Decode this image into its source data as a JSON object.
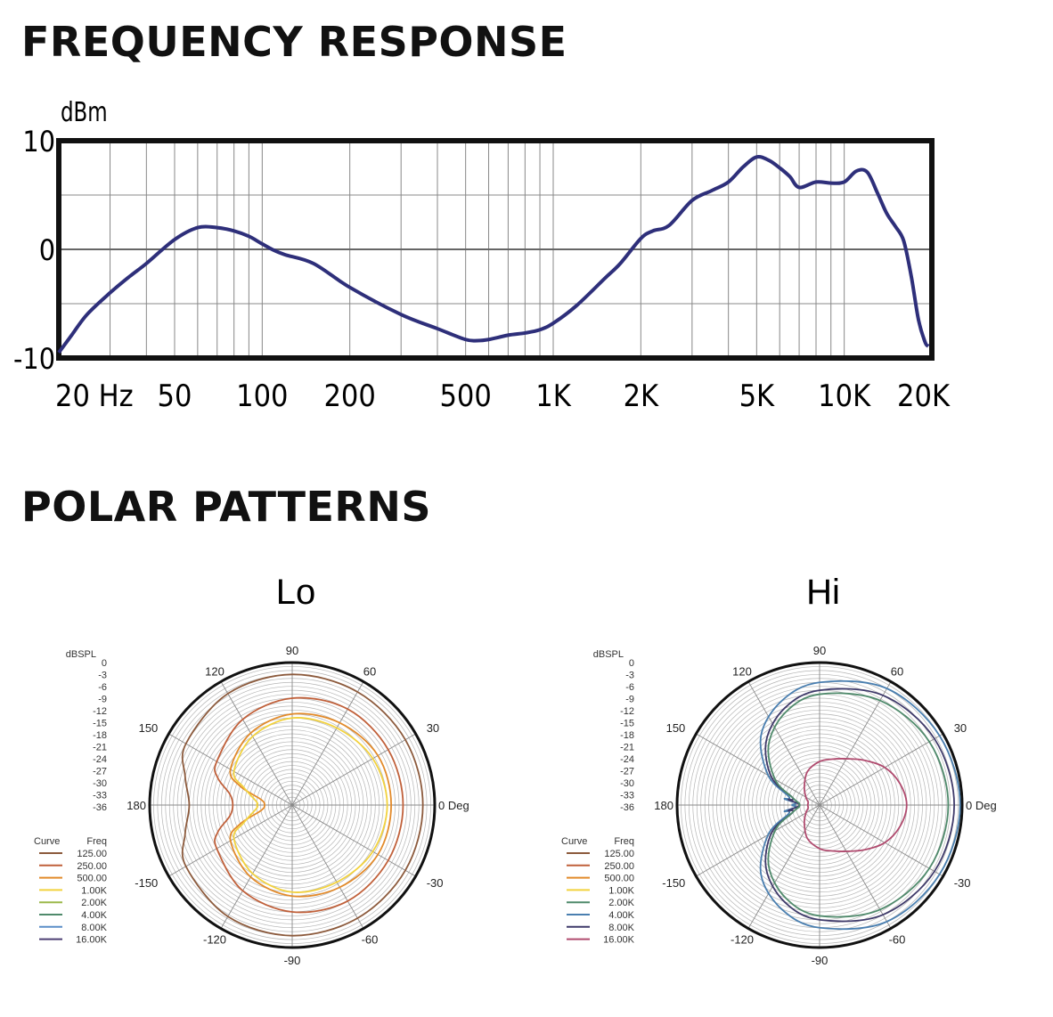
{
  "headings": {
    "frequency_response": "FREQUENCY RESPONSE",
    "polar_patterns": "POLAR PATTERNS"
  },
  "chart_data": [
    {
      "type": "line",
      "ylabel": "dBm",
      "ylim": [
        -10,
        10
      ],
      "y_ticks": [
        10,
        0,
        -10
      ],
      "x_scale": "log",
      "xlim": [
        20,
        20000
      ],
      "x_tick_labels": [
        {
          "value": 20,
          "label": "20 Hz"
        },
        {
          "value": 50,
          "label": "50"
        },
        {
          "value": 100,
          "label": "100"
        },
        {
          "value": 200,
          "label": "200"
        },
        {
          "value": 500,
          "label": "500"
        },
        {
          "value": 1000,
          "label": "1K"
        },
        {
          "value": 2000,
          "label": "2K"
        },
        {
          "value": 5000,
          "label": "5K"
        },
        {
          "value": 10000,
          "label": "10K"
        },
        {
          "value": 20000,
          "label": "20K"
        }
      ],
      "grid": true,
      "line_color": "#2e2f7a",
      "series": [
        {
          "x": [
            20,
            22,
            25,
            30,
            35,
            40,
            50,
            60,
            70,
            80,
            90,
            100,
            110,
            120,
            150,
            200,
            300,
            400,
            500,
            550,
            600,
            700,
            800,
            900,
            1000,
            1200,
            1500,
            1700,
            2000,
            2200,
            2500,
            3000,
            3500,
            4000,
            4500,
            5000,
            5500,
            6000,
            6500,
            7000,
            8000,
            9000,
            10000,
            11000,
            12000,
            13000,
            14000,
            15000,
            16000,
            17000,
            18000,
            19000,
            19500
          ],
          "values": [
            -9.5,
            -8,
            -6,
            -4,
            -2.5,
            -1.3,
            0.9,
            2.0,
            2.0,
            1.7,
            1.2,
            0.5,
            -0.1,
            -0.5,
            -1.3,
            -3.5,
            -6,
            -7.3,
            -8.3,
            -8.4,
            -8.3,
            -7.9,
            -7.7,
            -7.4,
            -6.8,
            -5.2,
            -2.7,
            -1.3,
            1,
            1.7,
            2.2,
            4.5,
            5.4,
            6.2,
            7.6,
            8.5,
            8.2,
            7.5,
            6.7,
            5.7,
            6.2,
            6.1,
            6.2,
            7.2,
            7.1,
            5.2,
            3.3,
            2.1,
            0.8,
            -2.5,
            -6.5,
            -8.6,
            -8.9
          ]
        }
      ]
    },
    {
      "type": "polar",
      "title": "Lo",
      "rlabel": "dBSPL",
      "r_ticks": [
        "0",
        "-3",
        "-6",
        "-9",
        "-12",
        "-15",
        "-18",
        "-21",
        "-24",
        "-27",
        "-30",
        "-33",
        "-36"
      ],
      "angle_labels": [
        "0 Deg",
        "30",
        "60",
        "90",
        "120",
        "150",
        "180",
        "-150",
        "-120",
        "-90",
        "-60",
        "-30"
      ],
      "legend": {
        "curve_header": "Curve",
        "freq_header": "Freq",
        "items": [
          "125.00",
          "250.00",
          "500.00",
          "1.00K",
          "2.00K",
          "4.00K",
          "8.00K",
          "16.00K"
        ],
        "colors": [
          "#8c5a3c",
          "#c0603a",
          "#e28a2a",
          "#f2d23e",
          "#9cb84a",
          "#4f8a6b",
          "#5b8ec8",
          "#4c3f73"
        ]
      },
      "series": [
        {
          "name": "125.00",
          "color": "#8c5a3c",
          "points": [
            [
              0,
              -3
            ],
            [
              30,
              -3
            ],
            [
              60,
              -3
            ],
            [
              90,
              -3
            ],
            [
              120,
              -3.5
            ],
            [
              150,
              -5
            ],
            [
              165,
              -8
            ],
            [
              180,
              -10
            ],
            [
              -165,
              -8
            ],
            [
              -150,
              -5
            ],
            [
              -120,
              -3.5
            ],
            [
              -90,
              -3
            ],
            [
              -60,
              -3
            ],
            [
              -30,
              -3
            ]
          ]
        },
        {
          "name": "250.00",
          "color": "#c0603a",
          "points": [
            [
              0,
              -8
            ],
            [
              30,
              -8
            ],
            [
              60,
              -8
            ],
            [
              90,
              -9
            ],
            [
              120,
              -11
            ],
            [
              150,
              -14
            ],
            [
              160,
              -16
            ],
            [
              170,
              -20
            ],
            [
              180,
              -21
            ],
            [
              -170,
              -20
            ],
            [
              -160,
              -16
            ],
            [
              -150,
              -14
            ],
            [
              -120,
              -11
            ],
            [
              -90,
              -9
            ],
            [
              -60,
              -8
            ],
            [
              -30,
              -8
            ]
          ]
        },
        {
          "name": "500.00",
          "color": "#e28a2a",
          "points": [
            [
              0,
              -11
            ],
            [
              30,
              -11
            ],
            [
              60,
              -12
            ],
            [
              90,
              -13
            ],
            [
              120,
              -15
            ],
            [
              150,
              -18
            ],
            [
              160,
              -22
            ],
            [
              170,
              -28
            ],
            [
              180,
              -29
            ],
            [
              -170,
              -28
            ],
            [
              -160,
              -22
            ],
            [
              -150,
              -18
            ],
            [
              -120,
              -15
            ],
            [
              -90,
              -13
            ],
            [
              -60,
              -12
            ],
            [
              -30,
              -11
            ]
          ]
        },
        {
          "name": "1.00K",
          "color": "#f2d23e",
          "points": [
            [
              0,
              -12
            ],
            [
              30,
              -12.5
            ],
            [
              60,
              -13.5
            ],
            [
              90,
              -14
            ],
            [
              120,
              -16
            ],
            [
              150,
              -19
            ],
            [
              160,
              -23
            ],
            [
              175,
              -27
            ],
            [
              180,
              -27
            ],
            [
              -175,
              -27
            ],
            [
              -160,
              -23
            ],
            [
              -150,
              -19
            ],
            [
              -120,
              -16
            ],
            [
              -90,
              -14
            ],
            [
              -60,
              -13.5
            ],
            [
              -30,
              -12.5
            ]
          ]
        }
      ]
    },
    {
      "type": "polar",
      "title": "Hi",
      "rlabel": "dBSPL",
      "r_ticks": [
        "0",
        "-3",
        "-6",
        "-9",
        "-12",
        "-15",
        "-18",
        "-21",
        "-24",
        "-27",
        "-30",
        "-33",
        "-36"
      ],
      "angle_labels": [
        "0 Deg",
        "30",
        "60",
        "90",
        "120",
        "150",
        "180",
        "-150",
        "-120",
        "-90",
        "-60",
        "-30"
      ],
      "legend": {
        "curve_header": "Curve",
        "freq_header": "Freq",
        "items": [
          "125.00",
          "250.00",
          "500.00",
          "1.00K",
          "2.00K",
          "4.00K",
          "8.00K",
          "16.00K"
        ],
        "colors": [
          "#8c5a3c",
          "#c0603a",
          "#e28a2a",
          "#f2d23e",
          "#4f8a6b",
          "#4a7fb0",
          "#3f3a6a",
          "#b04a6e"
        ]
      },
      "series": [
        {
          "name": "4.00K",
          "color": "#4a7fb0",
          "points": [
            [
              0,
              -0.5
            ],
            [
              30,
              -1
            ],
            [
              60,
              -2
            ],
            [
              90,
              -5
            ],
            [
              110,
              -8
            ],
            [
              130,
              -13
            ],
            [
              150,
              -21
            ],
            [
              165,
              -28
            ],
            [
              170,
              -27
            ],
            [
              175,
              -30
            ],
            [
              180,
              -29
            ],
            [
              -175,
              -30
            ],
            [
              -170,
              -27
            ],
            [
              -165,
              -28
            ],
            [
              -150,
              -21
            ],
            [
              -130,
              -13
            ],
            [
              -110,
              -8
            ],
            [
              -90,
              -5
            ],
            [
              -60,
              -2
            ],
            [
              -30,
              -1
            ]
          ]
        },
        {
          "name": "8.00K",
          "color": "#3f3a6a",
          "points": [
            [
              0,
              -2
            ],
            [
              30,
              -2.5
            ],
            [
              60,
              -4
            ],
            [
              90,
              -7
            ],
            [
              110,
              -10
            ],
            [
              130,
              -15
            ],
            [
              150,
              -22
            ],
            [
              165,
              -29
            ],
            [
              170,
              -28
            ],
            [
              180,
              -31
            ],
            [
              -170,
              -28
            ],
            [
              -165,
              -29
            ],
            [
              -150,
              -22
            ],
            [
              -130,
              -15
            ],
            [
              -110,
              -10
            ],
            [
              -90,
              -7
            ],
            [
              -60,
              -4
            ],
            [
              -30,
              -2.5
            ]
          ]
        },
        {
          "name": "2.00K",
          "color": "#4f8a6b",
          "points": [
            [
              0,
              -3.5
            ],
            [
              30,
              -4
            ],
            [
              60,
              -5.5
            ],
            [
              90,
              -8
            ],
            [
              110,
              -11
            ],
            [
              130,
              -16
            ],
            [
              150,
              -23
            ],
            [
              165,
              -29
            ],
            [
              180,
              -31
            ],
            [
              -165,
              -29
            ],
            [
              -150,
              -23
            ],
            [
              -130,
              -16
            ],
            [
              -110,
              -11
            ],
            [
              -90,
              -8
            ],
            [
              -60,
              -5.5
            ],
            [
              -30,
              -4
            ]
          ]
        },
        {
          "name": "16.00K",
          "color": "#b04a6e",
          "points": [
            [
              0,
              -14
            ],
            [
              15,
              -15
            ],
            [
              30,
              -17
            ],
            [
              45,
              -20
            ],
            [
              60,
              -22.5
            ],
            [
              75,
              -24
            ],
            [
              90,
              -25
            ],
            [
              110,
              -27
            ],
            [
              130,
              -30
            ],
            [
              150,
              -32
            ],
            [
              165,
              -33
            ],
            [
              180,
              -33
            ],
            [
              -165,
              -33
            ],
            [
              -150,
              -32
            ],
            [
              -130,
              -30
            ],
            [
              -110,
              -27
            ],
            [
              -90,
              -25
            ],
            [
              -75,
              -24
            ],
            [
              -60,
              -22.5
            ],
            [
              -45,
              -20
            ],
            [
              -30,
              -17
            ],
            [
              -15,
              -15
            ]
          ]
        }
      ]
    }
  ]
}
